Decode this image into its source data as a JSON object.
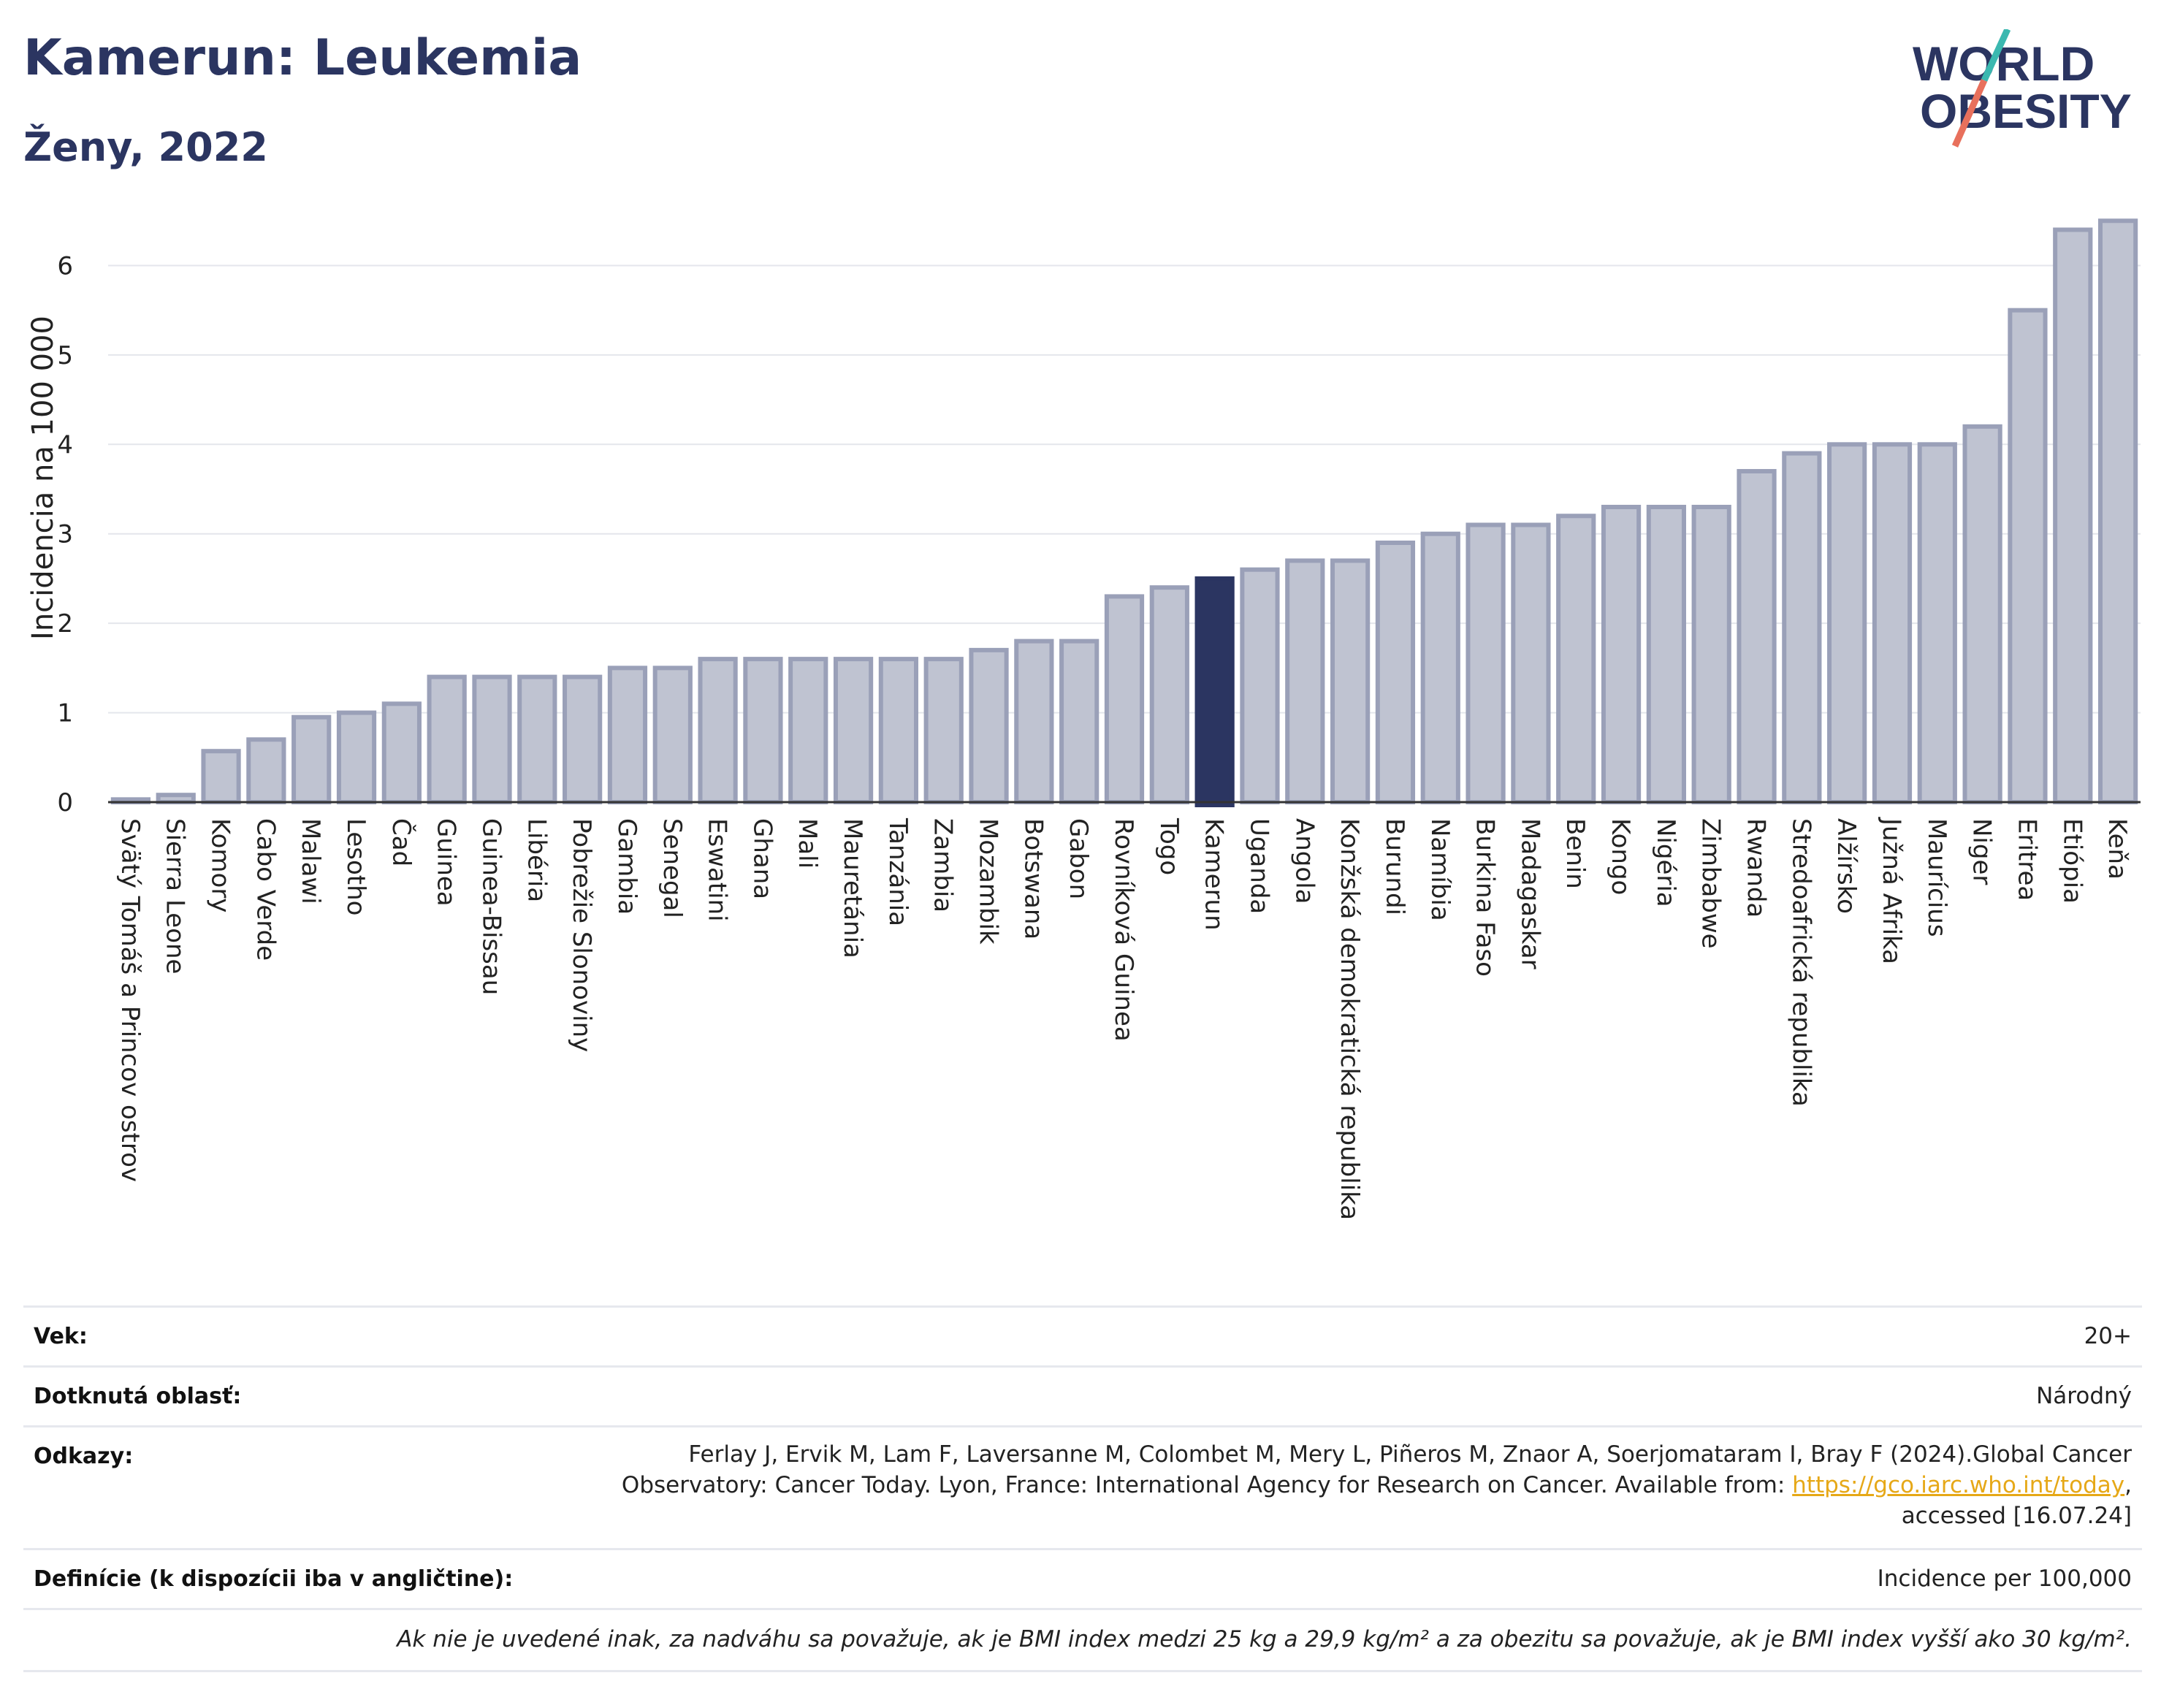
{
  "header": {
    "title": "Kamerun: Leukemia",
    "subtitle": "Ženy, 2022"
  },
  "logo": {
    "line1": "WORLD",
    "line2": "OBESITY",
    "colors": {
      "text": "#2b3561",
      "slash_teal": "#3bb8b0",
      "slash_red": "#e8705c"
    }
  },
  "chart_data": {
    "type": "bar",
    "ylabel": "Incidencia na 100 000",
    "ylim": [
      0,
      6.6
    ],
    "yticks": [
      0,
      1,
      2,
      3,
      4,
      5,
      6
    ],
    "grid": true,
    "highlight": "Kamerun",
    "colors": {
      "bar": "#bfc3d1",
      "bar_stroke": "#9aa0b8",
      "highlight": "#2b3561"
    },
    "categories": [
      "Svätý Tomáš a Princov ostrov",
      "Sierra Leone",
      "Komory",
      "Cabo Verde",
      "Malawi",
      "Lesotho",
      "Čad",
      "Guinea",
      "Guinea-Bissau",
      "Libéria",
      "Pobrežie Slonoviny",
      "Gambia",
      "Senegal",
      "Eswatini",
      "Ghana",
      "Mali",
      "Mauretánia",
      "Tanzánia",
      "Zambia",
      "Mozambik",
      "Botswana",
      "Gabon",
      "Rovníková Guinea",
      "Togo",
      "Kamerun",
      "Uganda",
      "Angola",
      "Konžská demokratická republika",
      "Burundi",
      "Namíbia",
      "Burkina Faso",
      "Madagaskar",
      "Benin",
      "Kongo",
      "Nigéria",
      "Zimbabwe",
      "Rwanda",
      "Stredoafrická republika",
      "Alžírsko",
      "Južná Afrika",
      "Maurícius",
      "Niger",
      "Eritrea",
      "Etiópia",
      "Keňa"
    ],
    "values": [
      0.03,
      0.08,
      0.57,
      0.7,
      0.95,
      1.0,
      1.1,
      1.4,
      1.4,
      1.4,
      1.4,
      1.5,
      1.5,
      1.6,
      1.6,
      1.6,
      1.6,
      1.6,
      1.6,
      1.7,
      1.8,
      1.8,
      2.3,
      2.4,
      2.5,
      2.6,
      2.7,
      2.7,
      2.9,
      3.0,
      3.1,
      3.1,
      3.2,
      3.3,
      3.3,
      3.3,
      3.7,
      3.9,
      4.0,
      4.0,
      4.0,
      4.2,
      5.5,
      6.4,
      6.5
    ]
  },
  "info": {
    "age_label": "Vek:",
    "age_value": "20+",
    "area_label": "Dotknutá oblasť:",
    "area_value": "Národný",
    "refs_label": "Odkazy:",
    "refs_line1": "Ferlay J, Ervik M, Lam F, Laversanne M, Colombet M, Mery L, Piñeros M, Znaor A, Soerjomataram I, Bray F (2024).Global Cancer",
    "refs_line2_prefix": "Observatory: Cancer Today. Lyon, France: International Agency for Research on Cancer. Available from: ",
    "refs_link": "https://gco.iarc.who.int/today",
    "refs_line2_suffix": ",",
    "refs_line3": "accessed [16.07.24]",
    "def_label": "Definície (k dispozícii iba v angličtine):",
    "def_value": "Incidence per 100,000",
    "note": "Ak nie je uvedené inak, za nadváhu sa považuje, ak je BMI index medzi 25 kg a 29,9 kg/m² a za obezitu sa považuje, ak je BMI index vyšší ako 30 kg/m²."
  }
}
